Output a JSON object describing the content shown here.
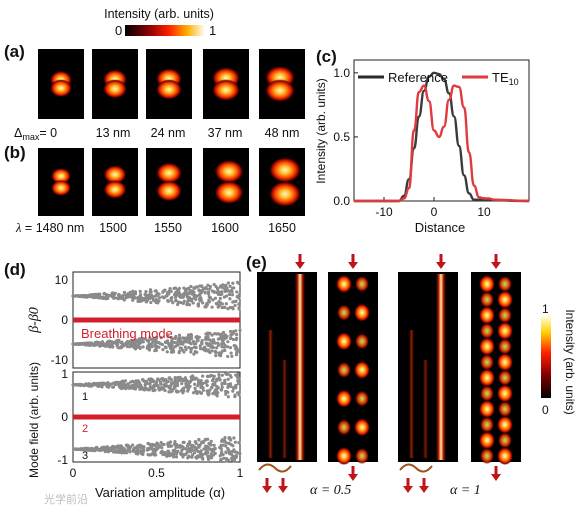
{
  "top_colorbar": {
    "title": "Intensity (arb. units)",
    "min_label": "0",
    "max_label": "1"
  },
  "panel_a": {
    "letter": "(a)",
    "param_symbol": "Δ",
    "param_sub": "max",
    "param_prefix": "= ",
    "values": [
      "0",
      "13 nm",
      "24 nm",
      "37 nm",
      "48 nm"
    ]
  },
  "panel_b": {
    "letter": "(b)",
    "param_symbol": "λ",
    "param_prefix": "= ",
    "values": [
      "1480 nm",
      "1500",
      "1550",
      "1600",
      "1650"
    ]
  },
  "panel_c": {
    "letter": "(c)",
    "legend_reference": "Reference",
    "legend_te": "TE",
    "legend_te_sub": "10"
  },
  "panel_d": {
    "letter": "(d)",
    "breathing_label": "Breathing mode",
    "mode_labels": [
      "1",
      "2",
      "3"
    ]
  },
  "panel_e": {
    "letter": "(e)",
    "alpha_labels": [
      "α = 0.5",
      "α = 1"
    ],
    "colorbar": {
      "title": "Intensity (arb. units)",
      "max_label": "1",
      "min_label": "0"
    }
  },
  "watermark": "光学前沿",
  "colors": {
    "reference": "#3a3a3a",
    "te10": "#e03a3e",
    "breathing": "#d21f2b",
    "scatter": "#8a8a8a",
    "arrow": "#c0141c"
  },
  "chart_data": [
    {
      "type": "line",
      "title": "",
      "xlabel": "Distance",
      "ylabel": "Intensity (arb. units)",
      "xlim": [
        -16,
        19
      ],
      "ylim": [
        0,
        1.1
      ],
      "xticks": [
        -10,
        0,
        10
      ],
      "yticks": [
        0.0,
        0.5,
        1.0
      ],
      "legend": "top",
      "series": [
        {
          "name": "Reference",
          "x": [
            -16,
            -7,
            -6,
            -5,
            -4,
            -3,
            -2,
            -1,
            0,
            1,
            2,
            3,
            4,
            5,
            6,
            7,
            8,
            19
          ],
          "y": [
            0,
            0,
            0.04,
            0.17,
            0.41,
            0.66,
            0.86,
            0.97,
            1.0,
            0.99,
            0.95,
            0.84,
            0.66,
            0.43,
            0.2,
            0.06,
            0.01,
            0
          ]
        },
        {
          "name": "TE10",
          "x": [
            -16,
            -7,
            -6,
            -5,
            -4,
            -3,
            -2,
            -1,
            0,
            1,
            2,
            3,
            4,
            5,
            6,
            7,
            8,
            9,
            10,
            11,
            12,
            19
          ],
          "y": [
            0,
            0,
            0.02,
            0.1,
            0.55,
            0.85,
            0.9,
            0.78,
            0.55,
            0.5,
            0.58,
            0.79,
            0.9,
            0.89,
            0.73,
            0.38,
            0.12,
            0.03,
            0.02,
            0.02,
            0.01,
            0
          ]
        }
      ]
    },
    {
      "type": "scatter",
      "title": "",
      "xlabel": "",
      "ylabel": "β-β0",
      "xlim": [
        0,
        1.0
      ],
      "ylim": [
        -12,
        12
      ],
      "yticks": [
        10,
        0,
        -10
      ],
      "series": [
        {
          "name": "upper",
          "center": 6,
          "spread_at_alpha_1": 3.5
        },
        {
          "name": "Breathing mode",
          "center": 0,
          "spread_at_alpha_1": 0
        },
        {
          "name": "lower",
          "center": -6,
          "spread_at_alpha_1": 3.5
        }
      ]
    },
    {
      "type": "scatter",
      "title": "",
      "xlabel": "Variation amplitude (α)",
      "ylabel": "Mode field (arb. units)",
      "xlim": [
        0,
        1.0
      ],
      "ylim": [
        -1.05,
        1.05
      ],
      "xticks": [
        0,
        0.5,
        1.0
      ],
      "yticks": [
        1,
        0,
        -1
      ],
      "series": [
        {
          "name": "1",
          "center": 0.75,
          "spread_at_alpha_1": 0.3
        },
        {
          "name": "2",
          "center": 0,
          "spread_at_alpha_1": 0
        },
        {
          "name": "3",
          "center": -0.75,
          "spread_at_alpha_1": 0.3
        }
      ]
    }
  ]
}
